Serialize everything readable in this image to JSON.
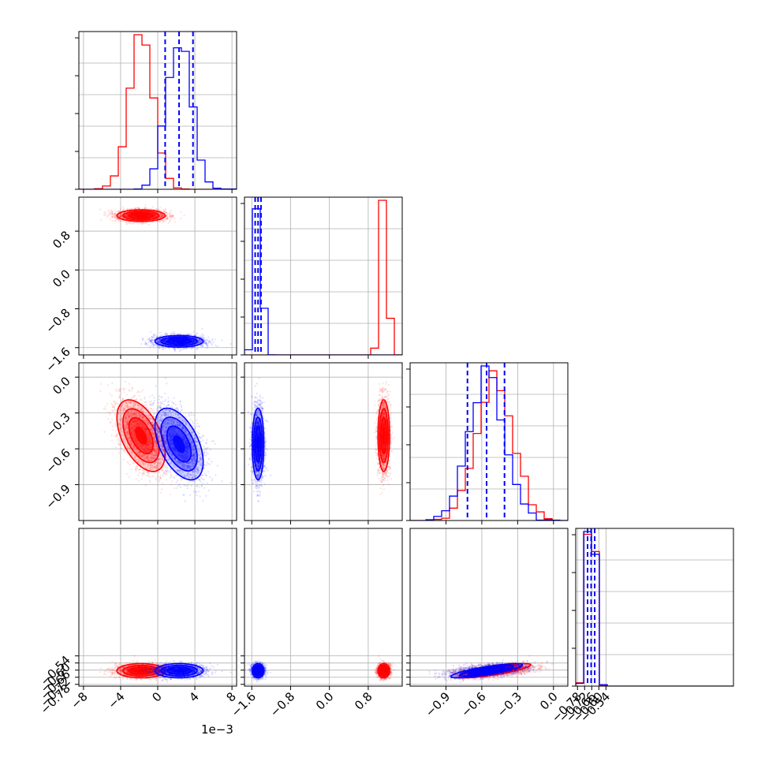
{
  "chart_data": {
    "type": "corner",
    "title": "",
    "grid": true,
    "parameters": [
      {
        "range": [
          -0.0085,
          0.0085
        ],
        "ticks": [
          -0.008,
          -0.004,
          0.0,
          0.004,
          0.008
        ],
        "tick_labels": [
          "−8",
          "−4",
          "0",
          "4",
          "8"
        ],
        "offset_text": "1e−3"
      },
      {
        "range": [
          -1.75,
          1.5
        ],
        "ticks": [
          -1.6,
          -0.8,
          0.0,
          0.8
        ],
        "tick_labels": [
          "−1.6",
          "−0.8",
          "0.0",
          "0.8"
        ]
      },
      {
        "range": [
          -1.2,
          0.12
        ],
        "ticks": [
          -0.9,
          -0.6,
          -0.3,
          0.0
        ],
        "tick_labels": [
          "−0.9",
          "−0.6",
          "−0.3",
          "0.0"
        ]
      },
      {
        "range": [
          -0.795,
          0.535
        ],
        "ticks": [
          -0.78,
          -0.72,
          -0.66,
          -0.6,
          -0.54
        ],
        "tick_labels": [
          "−0.78",
          "−0.72",
          "−0.66",
          "−0.60",
          "−0.54"
        ]
      }
    ],
    "series": [
      {
        "color": "#ff0000",
        "means": [
          -0.0018,
          1.12,
          -0.49,
          -0.665
        ],
        "sds": [
          0.0013,
          0.06,
          0.15,
          0.03
        ]
      },
      {
        "color": "#0000ff",
        "means": [
          0.0023,
          -1.47,
          -0.56,
          -0.665
        ],
        "sds": [
          0.0013,
          0.06,
          0.15,
          0.03
        ]
      }
    ],
    "quantile_lines": [
      {
        "param": 0,
        "values": [
          0.0008,
          0.0023,
          0.0038
        ]
      },
      {
        "param": 1,
        "values": [
          -1.53,
          -1.47,
          -1.41
        ]
      },
      {
        "param": 2,
        "values": [
          -0.72,
          -0.56,
          -0.41
        ]
      },
      {
        "param": 3,
        "values": [
          -0.695,
          -0.665,
          -0.635
        ]
      }
    ],
    "colors": {
      "red": "#ff0000",
      "blue": "#0000ff",
      "grid": "#b0b0b0"
    }
  }
}
